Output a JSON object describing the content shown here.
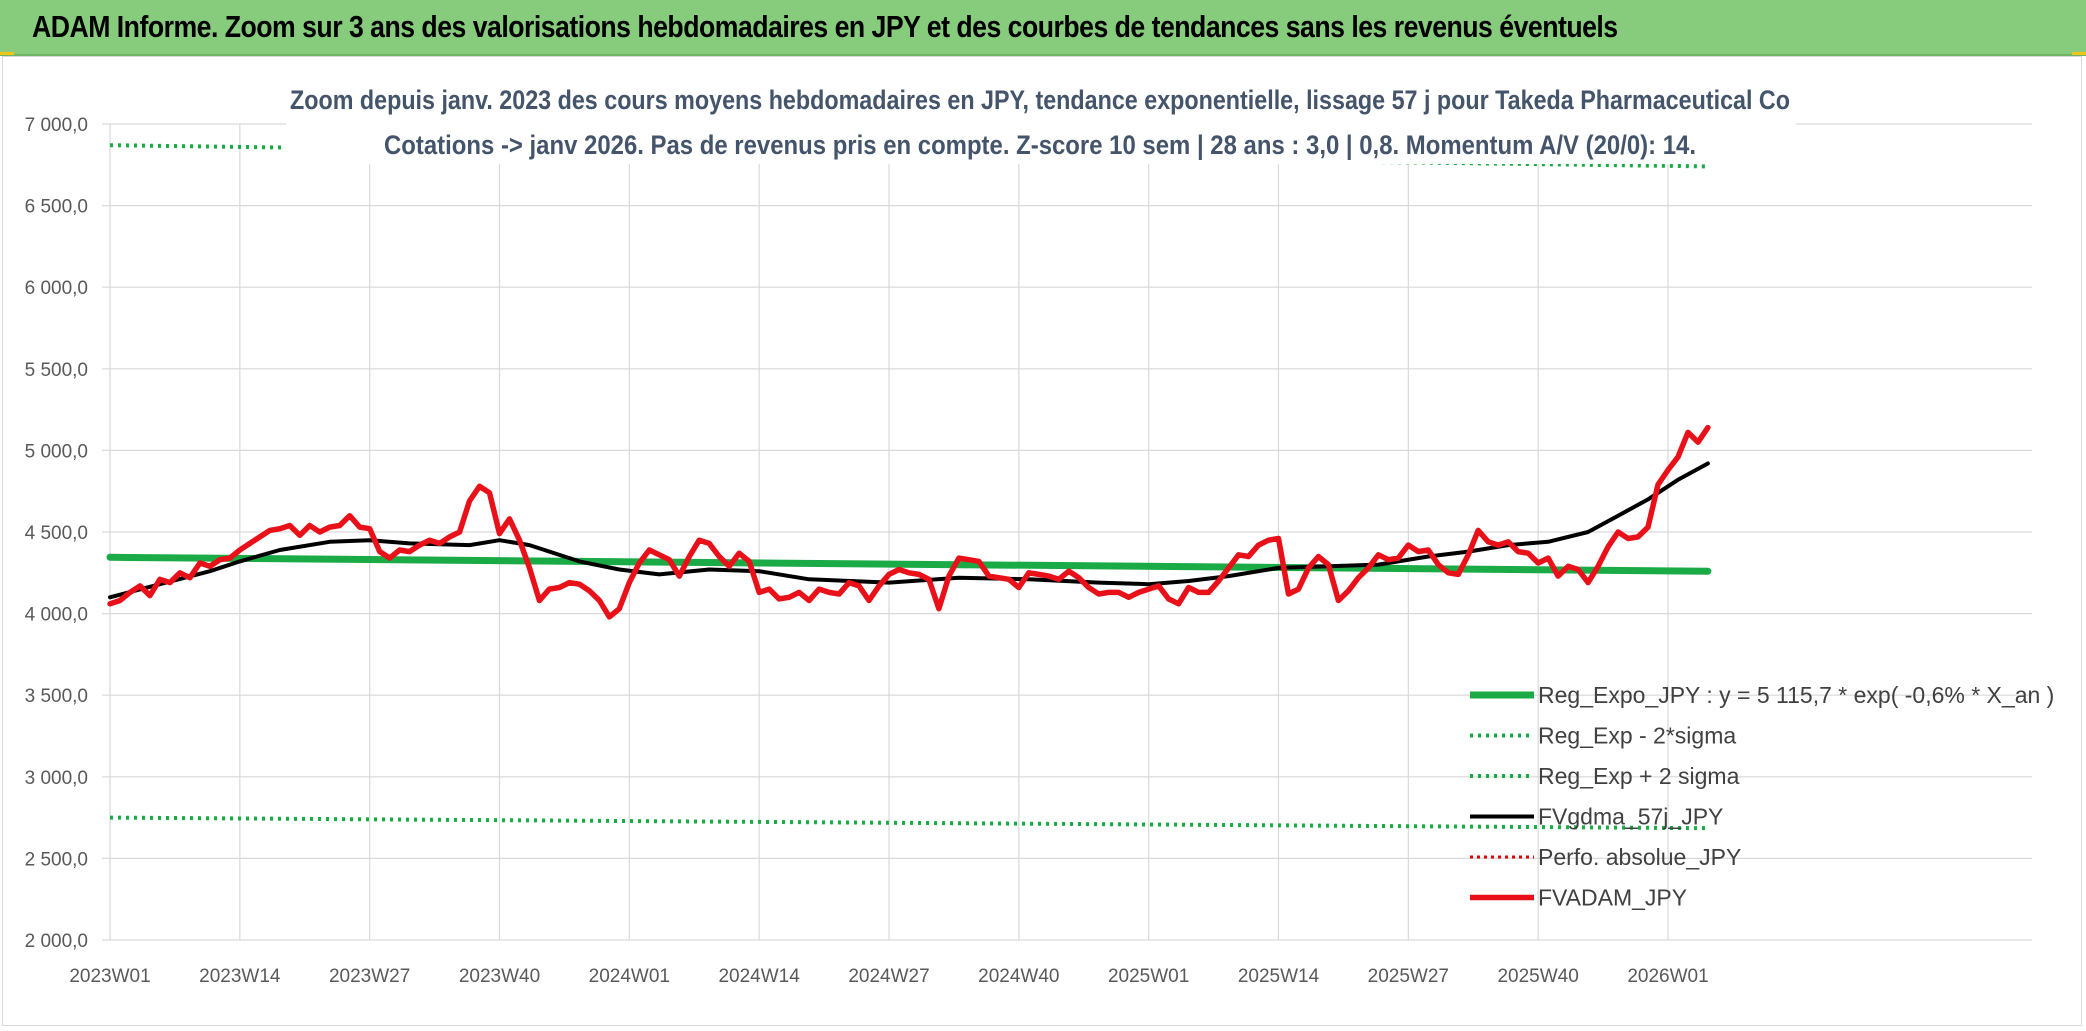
{
  "banner": {
    "title": "ADAM Informe. Zoom sur 3 ans des valorisations hebdomadaires en JPY et des courbes de tendances sans les revenus éventuels"
  },
  "colors": {
    "banner": "#86cc7c",
    "reg_expo": "#1aab47",
    "sigma": "#1aab47",
    "fvgdma": "#000000",
    "perfo": "#e00000",
    "fvadam": "#e8111a",
    "title": "#44546a"
  },
  "chart_data": {
    "type": "line",
    "title_lines": [
      "Zoom depuis janv. 2023 des cours moyens hebdomadaires en JPY, tendance exponentielle, lissage 57 j pour Takeda Pharmaceutical Co",
      "Cotations -> janv 2026. Pas de revenus pris en compte. Z-score 10 sem | 28 ans : 3,0 | 0,8. Momentum A/V (20/0): 14."
    ],
    "ylim": [
      2000,
      7000
    ],
    "y_ticks": [
      "7 000,0",
      "6 500,0",
      "6 000,0",
      "5 500,0",
      "5 000,0",
      "4 500,0",
      "4 000,0",
      "3 500,0",
      "3 000,0",
      "2 500,0",
      "2 000,0"
    ],
    "y_tick_values": [
      7000,
      6500,
      6000,
      5500,
      5000,
      4500,
      4000,
      3500,
      3000,
      2500,
      2000
    ],
    "x_ticks": [
      "2023W01",
      "2023W14",
      "2023W27",
      "2023W40",
      "2024W01",
      "2024W14",
      "2024W27",
      "2024W40",
      "2025W01",
      "2025W14",
      "2025W27",
      "2025W40",
      "2026W01"
    ],
    "x_tick_weeks": [
      0,
      13,
      26,
      39,
      52,
      65,
      78,
      91,
      104,
      117,
      130,
      143,
      156
    ],
    "x_max_week": 160,
    "legend_position": "bottom-right",
    "series": [
      {
        "name": "Reg_Expo_JPY : y = 5 115,7 * exp( -0,6% *  X_an )",
        "style": "solid-thick",
        "x": [
          0,
          160
        ],
        "values": [
          4345,
          4260
        ]
      },
      {
        "name": "Reg_Exp - 2*sigma",
        "style": "dotted",
        "x": [
          0,
          160
        ],
        "values": [
          2750,
          2685
        ]
      },
      {
        "name": "Reg_Exp + 2 sigma",
        "style": "dotted",
        "x": [
          0,
          160
        ],
        "values": [
          6870,
          6740
        ]
      },
      {
        "name": "FVgdma_57j_JPY",
        "style": "solid",
        "x": [
          0,
          5,
          10,
          13,
          17,
          22,
          26,
          30,
          36,
          39,
          42,
          47,
          51,
          55,
          60,
          65,
          70,
          78,
          85,
          92,
          99,
          104,
          108,
          112,
          117,
          122,
          127,
          132,
          136,
          140,
          144,
          148,
          151,
          154,
          157,
          160
        ],
        "values": [
          4100,
          4180,
          4260,
          4320,
          4390,
          4440,
          4450,
          4430,
          4420,
          4450,
          4420,
          4320,
          4270,
          4240,
          4270,
          4260,
          4210,
          4190,
          4220,
          4210,
          4190,
          4180,
          4200,
          4230,
          4280,
          4290,
          4300,
          4350,
          4380,
          4420,
          4440,
          4500,
          4600,
          4700,
          4820,
          4920
        ]
      },
      {
        "name": "Perfo. absolue_JPY",
        "style": "dotted-red",
        "x": [],
        "values": []
      },
      {
        "name": "FVADAM_JPY",
        "style": "solid-thick",
        "x": [
          0,
          1,
          2,
          3,
          4,
          5,
          6,
          7,
          8,
          9,
          10,
          11,
          12,
          13,
          14,
          15,
          16,
          17,
          18,
          19,
          20,
          21,
          22,
          23,
          24,
          25,
          26,
          27,
          28,
          29,
          30,
          31,
          32,
          33,
          34,
          35,
          36,
          37,
          38,
          39,
          40,
          41,
          42,
          43,
          44,
          45,
          46,
          47,
          48,
          49,
          50,
          51,
          52,
          53,
          54,
          55,
          56,
          57,
          58,
          59,
          60,
          61,
          62,
          63,
          64,
          65,
          66,
          67,
          68,
          69,
          70,
          71,
          72,
          73,
          74,
          75,
          76,
          77,
          78,
          79,
          80,
          81,
          82,
          83,
          84,
          85,
          86,
          87,
          88,
          89,
          90,
          91,
          92,
          93,
          94,
          95,
          96,
          97,
          98,
          99,
          100,
          101,
          102,
          103,
          104,
          105,
          106,
          107,
          108,
          109,
          110,
          111,
          112,
          113,
          114,
          115,
          116,
          117,
          118,
          119,
          120,
          121,
          122,
          123,
          124,
          125,
          126,
          127,
          128,
          129,
          130,
          131,
          132,
          133,
          134,
          135,
          136,
          137,
          138,
          139,
          140,
          141,
          142,
          143,
          144,
          145,
          146,
          147,
          148,
          149,
          150,
          151,
          152,
          153,
          154,
          155,
          156,
          157,
          158,
          159,
          160
        ],
        "values": [
          4060,
          4080,
          4130,
          4170,
          4110,
          4210,
          4190,
          4250,
          4220,
          4310,
          4290,
          4330,
          4340,
          4390,
          4430,
          4470,
          4510,
          4520,
          4540,
          4480,
          4540,
          4500,
          4530,
          4540,
          4600,
          4530,
          4520,
          4380,
          4340,
          4390,
          4380,
          4420,
          4450,
          4430,
          4470,
          4500,
          4690,
          4780,
          4740,
          4490,
          4580,
          4450,
          4280,
          4080,
          4150,
          4160,
          4190,
          4180,
          4140,
          4080,
          3980,
          4030,
          4190,
          4310,
          4390,
          4360,
          4330,
          4230,
          4350,
          4450,
          4430,
          4350,
          4290,
          4370,
          4320,
          4130,
          4150,
          4090,
          4100,
          4130,
          4080,
          4150,
          4130,
          4120,
          4190,
          4170,
          4080,
          4170,
          4240,
          4270,
          4250,
          4240,
          4210,
          4030,
          4230,
          4340,
          4330,
          4320,
          4230,
          4220,
          4210,
          4160,
          4250,
          4240,
          4230,
          4210,
          4260,
          4220,
          4160,
          4120,
          4130,
          4130,
          4100,
          4130,
          4150,
          4170,
          4090,
          4060,
          4160,
          4130,
          4130,
          4200,
          4280,
          4360,
          4350,
          4420,
          4450,
          4460,
          4120,
          4150,
          4280,
          4350,
          4300,
          4080,
          4140,
          4220,
          4280,
          4360,
          4330,
          4340,
          4420,
          4380,
          4390,
          4300,
          4250,
          4240,
          4360,
          4510,
          4440,
          4420,
          4440,
          4380,
          4370,
          4310,
          4340,
          4230,
          4290,
          4270,
          4190,
          4290,
          4410,
          4500,
          4460,
          4470,
          4530,
          4790,
          4880,
          4960,
          5110,
          5050,
          5140
        ]
      }
    ]
  }
}
